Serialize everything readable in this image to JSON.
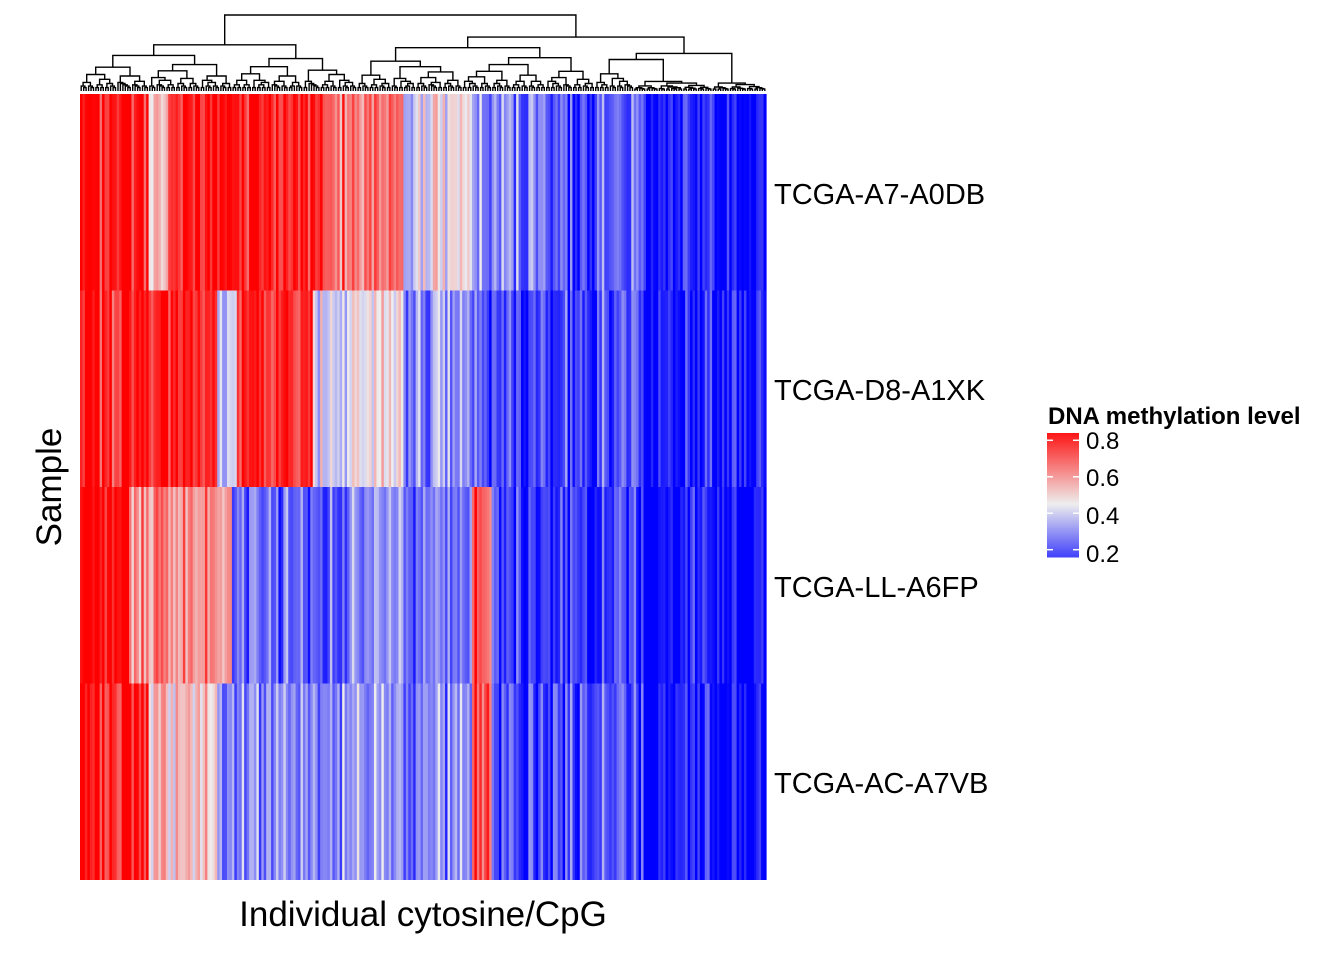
{
  "chart_data": {
    "type": "heatmap",
    "title": "",
    "xlabel": "Individual cytosine/CpG",
    "ylabel": "Sample",
    "rows": [
      "TCGA-A7-A0DB",
      "TCGA-D8-A1XK",
      "TCGA-LL-A6FP",
      "TCGA-AC-A7VB"
    ],
    "column_count": 280,
    "column_dendrogram": true,
    "row_profiles": [
      {
        "row": "TCGA-A7-A0DB",
        "segments": [
          {
            "from": 0.0,
            "to": 0.1,
            "value": 0.86
          },
          {
            "from": 0.1,
            "to": 0.13,
            "value": 0.5
          },
          {
            "from": 0.13,
            "to": 0.36,
            "value": 0.84
          },
          {
            "from": 0.36,
            "to": 0.47,
            "value": 0.66
          },
          {
            "from": 0.47,
            "to": 0.57,
            "value": 0.46
          },
          {
            "from": 0.57,
            "to": 0.69,
            "value": 0.26
          },
          {
            "from": 0.69,
            "to": 0.82,
            "value": 0.22
          },
          {
            "from": 0.82,
            "to": 1.0,
            "value": 0.08
          }
        ]
      },
      {
        "row": "TCGA-D8-A1XK",
        "segments": [
          {
            "from": 0.0,
            "to": 0.2,
            "value": 0.83
          },
          {
            "from": 0.2,
            "to": 0.23,
            "value": 0.42
          },
          {
            "from": 0.23,
            "to": 0.34,
            "value": 0.82
          },
          {
            "from": 0.34,
            "to": 0.47,
            "value": 0.44
          },
          {
            "from": 0.47,
            "to": 0.57,
            "value": 0.28
          },
          {
            "from": 0.57,
            "to": 0.82,
            "value": 0.18
          },
          {
            "from": 0.82,
            "to": 1.0,
            "value": 0.08
          }
        ]
      },
      {
        "row": "TCGA-LL-A6FP",
        "segments": [
          {
            "from": 0.0,
            "to": 0.07,
            "value": 0.88
          },
          {
            "from": 0.07,
            "to": 0.22,
            "value": 0.62
          },
          {
            "from": 0.22,
            "to": 0.57,
            "value": 0.24
          },
          {
            "from": 0.57,
            "to": 0.6,
            "value": 0.72
          },
          {
            "from": 0.6,
            "to": 0.82,
            "value": 0.16
          },
          {
            "from": 0.82,
            "to": 1.0,
            "value": 0.06
          }
        ]
      },
      {
        "row": "TCGA-AC-A7VB",
        "segments": [
          {
            "from": 0.0,
            "to": 0.1,
            "value": 0.86
          },
          {
            "from": 0.1,
            "to": 0.2,
            "value": 0.52
          },
          {
            "from": 0.2,
            "to": 0.57,
            "value": 0.28
          },
          {
            "from": 0.57,
            "to": 0.6,
            "value": 0.72
          },
          {
            "from": 0.6,
            "to": 0.82,
            "value": 0.18
          },
          {
            "from": 0.82,
            "to": 1.0,
            "value": 0.05
          }
        ]
      }
    ],
    "legend": {
      "title": "DNA methylation level",
      "ticks": [
        "0.8",
        "0.6",
        "0.4",
        "0.2"
      ],
      "tick_values": [
        0.8,
        0.6,
        0.4,
        0.2
      ],
      "range": [
        0.16,
        0.84
      ],
      "placement": "right",
      "colors": {
        "low": "#0000ff",
        "mid": "#eeeeee",
        "high": "#ff0000"
      }
    }
  }
}
